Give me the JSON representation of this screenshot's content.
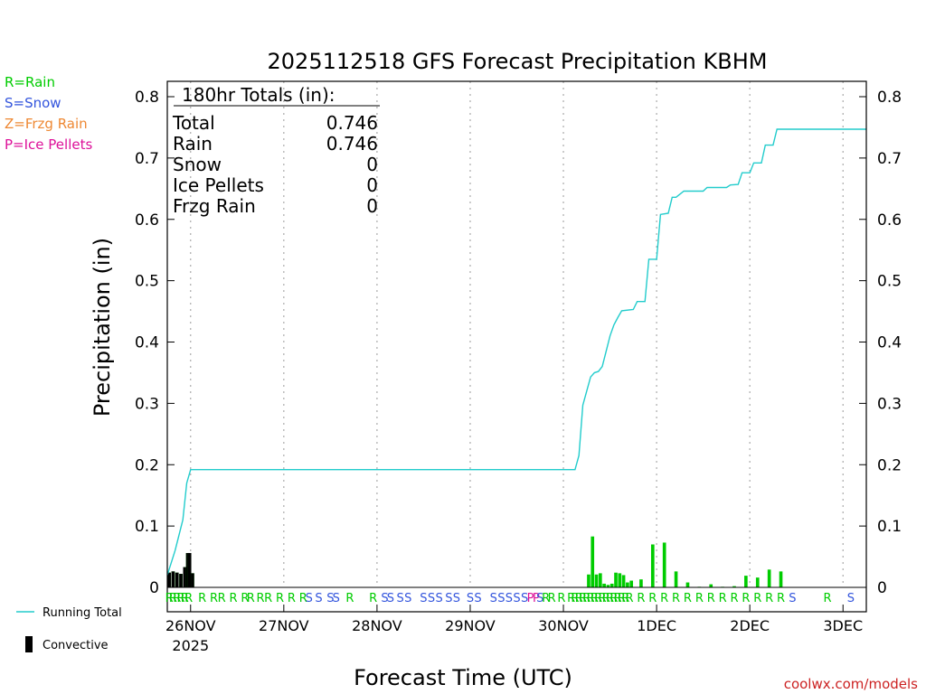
{
  "chart_data": {
    "type": "bar",
    "title": "2025112518 GFS Forecast Precipitation KBHM",
    "ylabel": "Precipitation (in)",
    "xlabel": "Forecast Time (UTC)",
    "ylim": [
      0,
      0.82
    ],
    "xlim_hours": [
      0,
      180
    ],
    "yticks": [
      {
        "v": 0,
        "label": "0"
      },
      {
        "v": 0.1,
        "label": "0.1"
      },
      {
        "v": 0.2,
        "label": "0.2"
      },
      {
        "v": 0.3,
        "label": "0.3"
      },
      {
        "v": 0.4,
        "label": "0.4"
      },
      {
        "v": 0.5,
        "label": "0.5"
      },
      {
        "v": 0.6,
        "label": "0.6"
      },
      {
        "v": 0.7,
        "label": "0.7"
      },
      {
        "v": 0.8,
        "label": "0.8"
      }
    ],
    "xticks": [
      {
        "hour": 6,
        "label": "26NOV",
        "sub": "2025"
      },
      {
        "hour": 30,
        "label": "27NOV"
      },
      {
        "hour": 54,
        "label": "28NOV"
      },
      {
        "hour": 78,
        "label": "29NOV"
      },
      {
        "hour": 102,
        "label": "30NOV"
      },
      {
        "hour": 126,
        "label": "1DEC"
      },
      {
        "hour": 150,
        "label": "2DEC"
      },
      {
        "hour": 174,
        "label": "3DEC"
      }
    ],
    "type_legend": [
      {
        "label": "R=Rain",
        "color": "#00cc00"
      },
      {
        "label": "S=Snow",
        "color": "#3355dd"
      },
      {
        "label": "Z=Frzg Rain",
        "color": "#ee8833"
      },
      {
        "label": "P=Ice Pellets",
        "color": "#dd1199"
      }
    ],
    "series_legend": {
      "line": "Running Total",
      "convective": "Convective"
    },
    "totals_header": "180hr Totals (in):",
    "totals": [
      {
        "label": "Total",
        "value": "0.746"
      },
      {
        "label": "Rain",
        "value": "0.746"
      },
      {
        "label": "Snow",
        "value": "0"
      },
      {
        "label": "Ice Pellets",
        "value": "0"
      },
      {
        "label": "Frzg Rain",
        "value": "0"
      }
    ],
    "credit": "coolwx.com/models",
    "colors": {
      "line": "#22cccc",
      "bar": "#00cc00",
      "convective": "#000000",
      "rain": "#00cc00",
      "snow": "#3355dd",
      "pellets": "#dd1199"
    },
    "bars": [
      {
        "h": 0.5,
        "v": 0.024,
        "c": 0.024
      },
      {
        "h": 1.5,
        "v": 0.026,
        "c": 0.026
      },
      {
        "h": 2.5,
        "v": 0.024,
        "c": 0.024
      },
      {
        "h": 3.5,
        "v": 0.022,
        "c": 0.022
      },
      {
        "h": 4.5,
        "v": 0.033,
        "c": 0.033
      },
      {
        "h": 5.25,
        "v": 0.056,
        "c": 0.056
      },
      {
        "h": 5.75,
        "v": 0.056,
        "c": 0.056
      },
      {
        "h": 6.5,
        "v": 0.023,
        "c": 0.023
      },
      {
        "h": 108.5,
        "v": 0.021,
        "c": 0
      },
      {
        "h": 109.5,
        "v": 0.083,
        "c": 0
      },
      {
        "h": 110.5,
        "v": 0.021,
        "c": 0
      },
      {
        "h": 111.5,
        "v": 0.023,
        "c": 0
      },
      {
        "h": 112.5,
        "v": 0.006,
        "c": 0
      },
      {
        "h": 113.5,
        "v": 0.004,
        "c": 0
      },
      {
        "h": 114.5,
        "v": 0.006,
        "c": 0
      },
      {
        "h": 115.5,
        "v": 0.024,
        "c": 0
      },
      {
        "h": 116.5,
        "v": 0.023,
        "c": 0
      },
      {
        "h": 117.5,
        "v": 0.02,
        "c": 0
      },
      {
        "h": 118.5,
        "v": 0.008,
        "c": 0
      },
      {
        "h": 119.5,
        "v": 0.011,
        "c": 0
      },
      {
        "h": 122,
        "v": 0.013,
        "c": 0
      },
      {
        "h": 125,
        "v": 0.07,
        "c": 0
      },
      {
        "h": 128,
        "v": 0.073,
        "c": 0
      },
      {
        "h": 131,
        "v": 0.026,
        "c": 0
      },
      {
        "h": 134,
        "v": 0.008,
        "c": 0
      },
      {
        "h": 137,
        "v": 0.001,
        "c": 0
      },
      {
        "h": 140,
        "v": 0.005,
        "c": 0
      },
      {
        "h": 143,
        "v": 0.001,
        "c": 0
      },
      {
        "h": 146,
        "v": 0.002,
        "c": 0
      },
      {
        "h": 149,
        "v": 0.019,
        "c": 0
      },
      {
        "h": 152,
        "v": 0.016,
        "c": 0
      },
      {
        "h": 155,
        "v": 0.029,
        "c": 0
      },
      {
        "h": 158,
        "v": 0.026,
        "c": 0
      }
    ],
    "running_total": [
      [
        0,
        0.02
      ],
      [
        1,
        0.04
      ],
      [
        2,
        0.06
      ],
      [
        3,
        0.085
      ],
      [
        4,
        0.11
      ],
      [
        5,
        0.17
      ],
      [
        6,
        0.192
      ],
      [
        102,
        0.192
      ],
      [
        105,
        0.192
      ],
      [
        106,
        0.215
      ],
      [
        107,
        0.297
      ],
      [
        108,
        0.32
      ],
      [
        109,
        0.343
      ],
      [
        110,
        0.35
      ],
      [
        111,
        0.352
      ],
      [
        112,
        0.36
      ],
      [
        113,
        0.385
      ],
      [
        114,
        0.41
      ],
      [
        115,
        0.428
      ],
      [
        116,
        0.44
      ],
      [
        117,
        0.451
      ],
      [
        120,
        0.453
      ],
      [
        121,
        0.466
      ],
      [
        123,
        0.466
      ],
      [
        124,
        0.535
      ],
      [
        126,
        0.535
      ],
      [
        127,
        0.608
      ],
      [
        129,
        0.61
      ],
      [
        130,
        0.636
      ],
      [
        131,
        0.636
      ],
      [
        133,
        0.646
      ],
      [
        138,
        0.646
      ],
      [
        139,
        0.652
      ],
      [
        144,
        0.652
      ],
      [
        145,
        0.656
      ],
      [
        147,
        0.657
      ],
      [
        148,
        0.676
      ],
      [
        150,
        0.676
      ],
      [
        151,
        0.692
      ],
      [
        153,
        0.692
      ],
      [
        154,
        0.721
      ],
      [
        156,
        0.721
      ],
      [
        157,
        0.747
      ],
      [
        180,
        0.747
      ]
    ],
    "ptype_marks": [
      {
        "h": 0.5,
        "t": "R"
      },
      {
        "h": 1.5,
        "t": "R"
      },
      {
        "h": 2.5,
        "t": "R"
      },
      {
        "h": 3.5,
        "t": "R"
      },
      {
        "h": 4.5,
        "t": "R"
      },
      {
        "h": 5.5,
        "t": "R"
      },
      {
        "h": 9,
        "t": "R"
      },
      {
        "h": 12,
        "t": "R"
      },
      {
        "h": 14,
        "t": "R"
      },
      {
        "h": 17,
        "t": "R"
      },
      {
        "h": 20,
        "t": "R"
      },
      {
        "h": 21.5,
        "t": "R"
      },
      {
        "h": 24,
        "t": "R"
      },
      {
        "h": 26,
        "t": "R"
      },
      {
        "h": 29,
        "t": "R"
      },
      {
        "h": 32,
        "t": "R"
      },
      {
        "h": 35,
        "t": "R"
      },
      {
        "h": 36.5,
        "t": "S"
      },
      {
        "h": 39,
        "t": "S"
      },
      {
        "h": 42,
        "t": "S"
      },
      {
        "h": 43.5,
        "t": "S"
      },
      {
        "h": 47,
        "t": "R"
      },
      {
        "h": 53,
        "t": "R"
      },
      {
        "h": 56,
        "t": "S"
      },
      {
        "h": 57.5,
        "t": "S"
      },
      {
        "h": 60,
        "t": "S"
      },
      {
        "h": 62,
        "t": "S"
      },
      {
        "h": 66,
        "t": "S"
      },
      {
        "h": 68,
        "t": "S"
      },
      {
        "h": 70,
        "t": "S"
      },
      {
        "h": 72.5,
        "t": "S"
      },
      {
        "h": 74.5,
        "t": "S"
      },
      {
        "h": 78,
        "t": "S"
      },
      {
        "h": 80,
        "t": "S"
      },
      {
        "h": 84,
        "t": "S"
      },
      {
        "h": 86,
        "t": "S"
      },
      {
        "h": 88,
        "t": "S"
      },
      {
        "h": 90,
        "t": "S"
      },
      {
        "h": 92,
        "t": "S"
      },
      {
        "h": 93.5,
        "t": "P"
      },
      {
        "h": 95,
        "t": "P"
      },
      {
        "h": 96,
        "t": "S"
      },
      {
        "h": 97.5,
        "t": "R"
      },
      {
        "h": 99,
        "t": "R"
      },
      {
        "h": 101.5,
        "t": "R"
      },
      {
        "h": 104,
        "t": "R"
      },
      {
        "h": 105,
        "t": "R"
      },
      {
        "h": 106,
        "t": "R"
      },
      {
        "h": 107,
        "t": "R"
      },
      {
        "h": 108,
        "t": "R"
      },
      {
        "h": 109,
        "t": "R"
      },
      {
        "h": 110,
        "t": "R"
      },
      {
        "h": 111,
        "t": "R"
      },
      {
        "h": 112,
        "t": "R"
      },
      {
        "h": 113,
        "t": "R"
      },
      {
        "h": 114,
        "t": "R"
      },
      {
        "h": 115,
        "t": "R"
      },
      {
        "h": 116,
        "t": "R"
      },
      {
        "h": 117,
        "t": "R"
      },
      {
        "h": 118,
        "t": "R"
      },
      {
        "h": 119,
        "t": "R"
      },
      {
        "h": 122,
        "t": "R"
      },
      {
        "h": 125,
        "t": "R"
      },
      {
        "h": 128,
        "t": "R"
      },
      {
        "h": 131,
        "t": "R"
      },
      {
        "h": 134,
        "t": "R"
      },
      {
        "h": 137,
        "t": "R"
      },
      {
        "h": 140,
        "t": "R"
      },
      {
        "h": 143,
        "t": "R"
      },
      {
        "h": 146,
        "t": "R"
      },
      {
        "h": 149,
        "t": "R"
      },
      {
        "h": 152,
        "t": "R"
      },
      {
        "h": 155,
        "t": "R"
      },
      {
        "h": 158,
        "t": "R"
      },
      {
        "h": 161,
        "t": "S"
      },
      {
        "h": 170,
        "t": "R"
      },
      {
        "h": 176,
        "t": "S"
      }
    ]
  }
}
